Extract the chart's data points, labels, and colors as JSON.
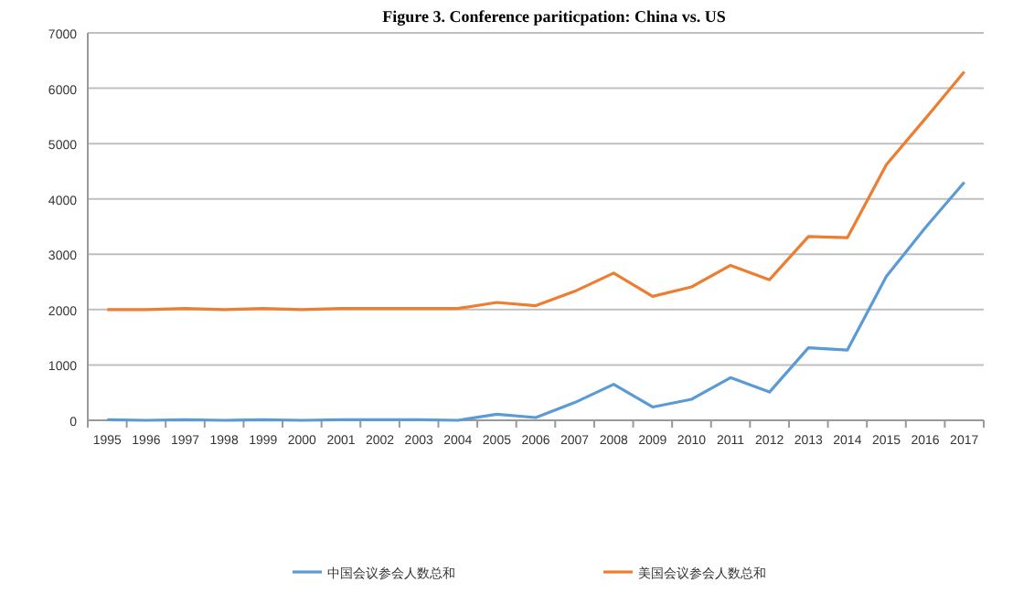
{
  "chart_data": {
    "type": "line",
    "title": "Figure 3.  Conference pariticpation: China vs. US",
    "categories": [
      "1995",
      "1996",
      "1997",
      "1998",
      "1999",
      "2000",
      "2001",
      "2002",
      "2003",
      "2004",
      "2005",
      "2006",
      "2007",
      "2008",
      "2009",
      "2010",
      "2011",
      "2012",
      "2013",
      "2014",
      "2015",
      "2016",
      "2017"
    ],
    "series": [
      {
        "name": "中国会议参会人数总和",
        "color": "#5b9bd5",
        "values": [
          10,
          0,
          10,
          0,
          10,
          0,
          10,
          10,
          10,
          0,
          110,
          50,
          320,
          650,
          240,
          380,
          770,
          510,
          1310,
          1270,
          2600,
          3480,
          4300
        ]
      },
      {
        "name": "美国会议参会人数总和",
        "color": "#ed7d31",
        "values": [
          2000,
          2000,
          2020,
          2000,
          2020,
          2000,
          2020,
          2020,
          2020,
          2020,
          2130,
          2070,
          2330,
          2660,
          2240,
          2410,
          2800,
          2540,
          3320,
          3300,
          4620,
          5450,
          6300
        ]
      }
    ],
    "ylim": [
      0,
      7000
    ],
    "yticks": [
      0,
      1000,
      2000,
      3000,
      4000,
      5000,
      6000,
      7000
    ],
    "grid": "y",
    "legend": "bottom",
    "marker": "none",
    "line_style": "solid"
  }
}
